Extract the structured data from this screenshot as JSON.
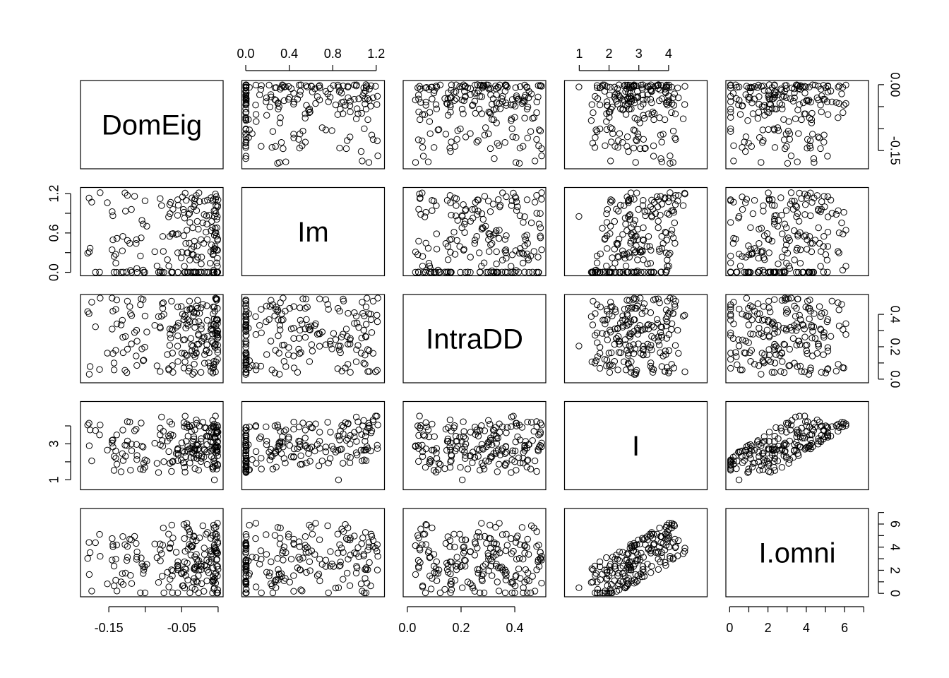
{
  "chart_data": {
    "type": "scatter",
    "title": "",
    "n_points": 200,
    "variables": [
      {
        "name": "DomEig",
        "range": [
          -0.185,
          0.003
        ]
      },
      {
        "name": "Im",
        "range": [
          -0.01,
          1.25
        ]
      },
      {
        "name": "IntraDD",
        "range": [
          -0.005,
          0.505
        ]
      },
      {
        "name": "I",
        "range": [
          0.6,
          5.2
        ]
      },
      {
        "name": "I.omni",
        "range": [
          -0.05,
          7.1
        ]
      }
    ],
    "axes": {
      "top": [
        {
          "column": 1,
          "ticks": [
            0.0,
            0.4,
            0.8,
            1.2
          ],
          "labels": [
            "0.0",
            "0.4",
            "0.8",
            "1.2"
          ]
        },
        {
          "column": 3,
          "ticks": [
            1,
            2,
            3,
            4
          ],
          "labels": [
            "1",
            "2",
            "3",
            "4"
          ]
        }
      ],
      "bottom": [
        {
          "column": 0,
          "ticks": [
            -0.15,
            -0.05
          ],
          "minor": [
            -0.1,
            0.0
          ],
          "labels": [
            "-0.15",
            "-0.05"
          ]
        },
        {
          "column": 2,
          "ticks": [
            0.0,
            0.2,
            0.4
          ],
          "labels": [
            "0.0",
            "0.2",
            "0.4"
          ]
        },
        {
          "column": 4,
          "ticks": [
            0,
            2,
            4,
            6
          ],
          "minor": [
            1,
            3,
            5,
            7
          ],
          "labels": [
            "0",
            "2",
            "4",
            "6"
          ]
        }
      ],
      "left": [
        {
          "row": 1,
          "ticks": [
            0.0,
            0.6,
            1.2
          ],
          "minor": [
            0.3,
            0.9
          ],
          "labels": [
            "0.0",
            "0.6",
            "1.2"
          ]
        },
        {
          "row": 3,
          "ticks": [
            1,
            3
          ],
          "minor": [
            2,
            4
          ],
          "labels": [
            "1",
            "3"
          ]
        }
      ],
      "right": [
        {
          "row": 0,
          "ticks": [
            0.0,
            -0.15
          ],
          "minor": [
            -0.05,
            -0.1
          ],
          "labels": [
            "0.00",
            "-0.15"
          ]
        },
        {
          "row": 2,
          "ticks": [
            0.0,
            0.2,
            0.4
          ],
          "minor": [
            0.1,
            0.3
          ],
          "labels": [
            "0.0",
            "0.2",
            "0.4"
          ]
        },
        {
          "row": 4,
          "ticks": [
            0,
            2,
            4,
            6
          ],
          "minor": [
            1,
            3,
            5,
            7
          ],
          "labels": [
            "0",
            "2",
            "4",
            "6"
          ]
        }
      ]
    },
    "point_style": {
      "shape": "open-circle",
      "color": "#000000"
    },
    "grid": false,
    "legend": "none"
  }
}
